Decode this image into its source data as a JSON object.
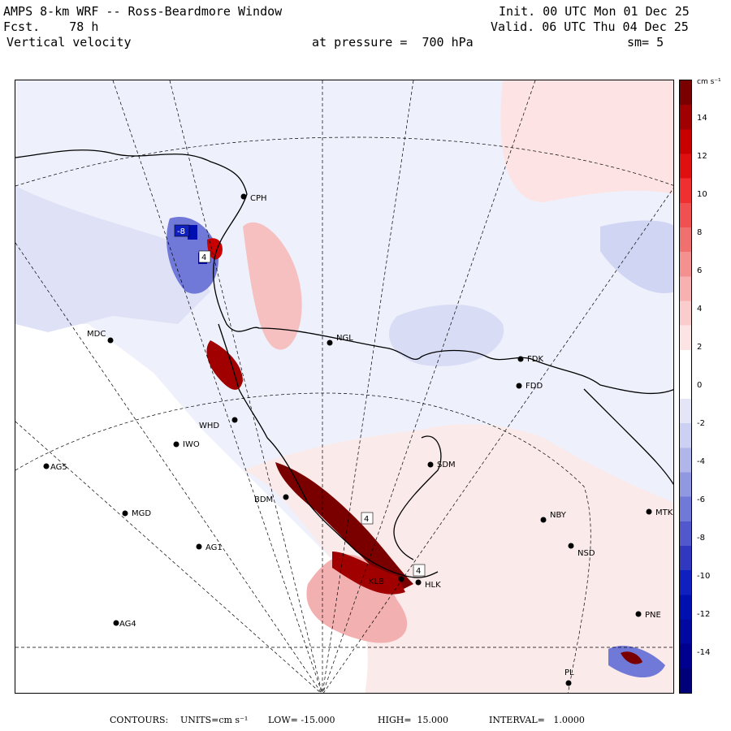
{
  "header": {
    "title_line": "AMPS 8-km WRF -- Ross-Beardmore Window",
    "fcst_line": "Fcst.    78 h",
    "field_line": "Vertical velocity",
    "pressure_line": "at pressure =  700 hPa",
    "init_line": "Init. 00 UTC Mon 01 Dec 25",
    "valid_line": "Valid. 06 UTC Thu 04 Dec 25",
    "smoothing": "sm= 5"
  },
  "colorbar": {
    "units": "cm s⁻¹",
    "tick_labels": [
      "14",
      "12",
      "10",
      "8",
      "6",
      "4",
      "2",
      "0",
      "-2",
      "-4",
      "-6",
      "-8",
      "-10",
      "-12",
      "-14"
    ],
    "colors": [
      "#7a0000",
      "#a00000",
      "#c80000",
      "#e01010",
      "#f03030",
      "#f05050",
      "#f07070",
      "#f59090",
      "#f8b0b0",
      "#fbcccc",
      "#fde4e4",
      "#ffffff",
      "#ffffff",
      "#e4e6f8",
      "#ccd0f2",
      "#b0b6ea",
      "#9098e2",
      "#7078d8",
      "#5058cc",
      "#3038c0",
      "#1020c0",
      "#0010b0",
      "#0008a0",
      "#000090",
      "#000078"
    ]
  },
  "stations": [
    {
      "code": "CPH"
    },
    {
      "code": "MDC"
    },
    {
      "code": "NGL"
    },
    {
      "code": "FDK"
    },
    {
      "code": "FDD"
    },
    {
      "code": "WHD"
    },
    {
      "code": "IWO"
    },
    {
      "code": "AG5"
    },
    {
      "code": "SDM"
    },
    {
      "code": "BDM"
    },
    {
      "code": "MGD"
    },
    {
      "code": "NBY"
    },
    {
      "code": "MTK"
    },
    {
      "code": "AG1"
    },
    {
      "code": "NSD"
    },
    {
      "code": "KLB"
    },
    {
      "code": "HLK"
    },
    {
      "code": "AG4"
    },
    {
      "code": "PNE"
    },
    {
      "code": "PL"
    }
  ],
  "contour_labels": [
    "-8",
    "4",
    "4",
    "4"
  ],
  "footer": {
    "contours_label": "CONTOURS:",
    "units_label": "UNITS=cm s⁻¹",
    "low_label": "LOW= -15.000",
    "high_label": "HIGH=  15.000",
    "interval_label": "INTERVAL=   1.0000"
  }
}
